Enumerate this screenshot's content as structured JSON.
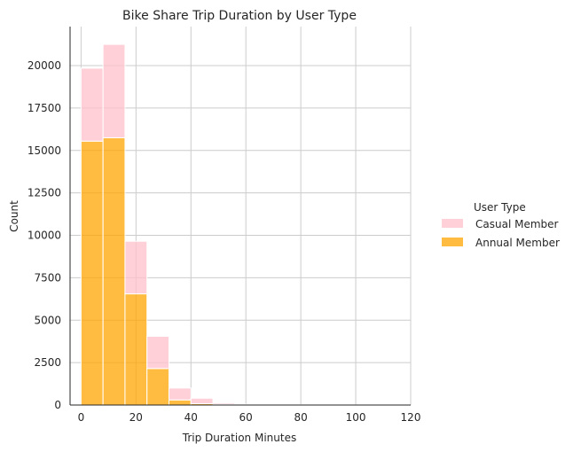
{
  "chart_data": {
    "type": "bar",
    "subtype": "stacked-histogram",
    "title": "Bike Share Trip Duration by User Type",
    "xlabel": "Trip Duration Minutes",
    "ylabel": "Count",
    "xlim": [
      -4,
      120
    ],
    "ylim": [
      0,
      22300
    ],
    "xticks": [
      0,
      20,
      40,
      60,
      80,
      100,
      120
    ],
    "yticks": [
      0,
      2500,
      5000,
      7500,
      10000,
      12500,
      15000,
      17500,
      20000
    ],
    "bin_edges": [
      0,
      8,
      16,
      24,
      32,
      40,
      48,
      56,
      64,
      72,
      80,
      88,
      96,
      104,
      112
    ],
    "grid": true,
    "legend": {
      "title": "User Type",
      "placement": "right"
    },
    "series": [
      {
        "name": "Annual Member",
        "color": "#FFA500",
        "values": [
          15550,
          15750,
          6550,
          2150,
          300,
          80,
          30,
          10,
          5,
          3,
          2,
          1,
          1,
          1
        ]
      },
      {
        "name": "Casual Member",
        "color": "#FFC0CB",
        "values": [
          4300,
          5500,
          3100,
          1900,
          700,
          320,
          80,
          40,
          20,
          10,
          8,
          5,
          4,
          3
        ]
      }
    ],
    "legend_order": [
      "Casual Member",
      "Annual Member"
    ]
  }
}
